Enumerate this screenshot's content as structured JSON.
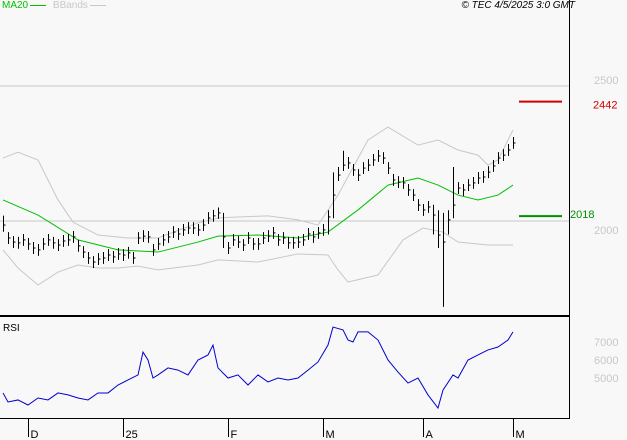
{
  "header": {
    "legend": [
      {
        "label": "MA20",
        "color": "#00c000"
      },
      {
        "label": "BBands",
        "color": "#c8c8c8"
      }
    ],
    "copyright": "© TEC 4/5/2025 3:0 GMT"
  },
  "chart_data": [
    {
      "type": "ohlc",
      "ylim": [
        1650,
        2680
      ],
      "y_ticks": [
        {
          "value": 2500,
          "label": "2500"
        },
        {
          "value": 2000,
          "label": "2000"
        }
      ],
      "x_ticks": [
        {
          "bar": 5,
          "label": "D"
        },
        {
          "bar": 24,
          "label": "25"
        },
        {
          "bar": 45,
          "label": "F"
        },
        {
          "bar": 64,
          "label": "M"
        },
        {
          "bar": 84,
          "label": "A"
        },
        {
          "bar": 102,
          "label": "M"
        }
      ],
      "grid": "horizontal at y ticks",
      "close": [
        1985,
        1937,
        1922,
        1919,
        1930,
        1915,
        1900,
        1893,
        1915,
        1930,
        1919,
        1911,
        1926,
        1930,
        1941,
        1908,
        1885,
        1863,
        1848,
        1859,
        1863,
        1874,
        1867,
        1878,
        1874,
        1882,
        1863,
        1937,
        1944,
        1941,
        1893,
        1915,
        1930,
        1941,
        1959,
        1952,
        1967,
        1974,
        1974,
        1967,
        1985,
        2011,
        2019,
        2030,
        1941,
        1900,
        1930,
        1922,
        1911,
        1937,
        1915,
        1915,
        1937,
        1944,
        1956,
        1930,
        1937,
        1919,
        1919,
        1922,
        1930,
        1952,
        1941,
        1956,
        1967,
        2015,
        2096,
        2170,
        2207,
        2215,
        2189,
        2170,
        2196,
        2207,
        2226,
        2241,
        2233,
        2196,
        2152,
        2144,
        2141,
        2115,
        2096,
        2059,
        2041,
        2052,
        2022,
        1948,
        1922,
        2004,
        2059,
        2122,
        2115,
        2133,
        2141,
        2159,
        2163,
        2181,
        2204,
        2233,
        2244,
        2263,
        2289
      ],
      "high": [
        2020,
        1959,
        1944,
        1941,
        1952,
        1937,
        1922,
        1915,
        1937,
        1952,
        1941,
        1933,
        1948,
        1952,
        1963,
        1930,
        1907,
        1885,
        1870,
        1881,
        1885,
        1896,
        1889,
        1900,
        1896,
        1904,
        1885,
        1959,
        1966,
        1963,
        1915,
        1937,
        1952,
        1963,
        1981,
        1974,
        1989,
        1996,
        1996,
        1989,
        2007,
        2033,
        2041,
        2050,
        2030,
        1922,
        1952,
        1944,
        1933,
        1959,
        1937,
        1937,
        1959,
        1966,
        1978,
        1952,
        1959,
        1941,
        1941,
        1944,
        1952,
        1974,
        1963,
        1978,
        1989,
        2040,
        2180,
        2200,
        2260,
        2237,
        2211,
        2192,
        2218,
        2229,
        2248,
        2263,
        2255,
        2218,
        2174,
        2166,
        2163,
        2137,
        2118,
        2081,
        2063,
        2074,
        2060,
        2040,
        2030,
        2040,
        2200,
        2144,
        2137,
        2155,
        2163,
        2181,
        2185,
        2203,
        2226,
        2255,
        2266,
        2285,
        2311
      ],
      "low": [
        1960,
        1915,
        1900,
        1897,
        1908,
        1893,
        1878,
        1871,
        1893,
        1908,
        1897,
        1889,
        1904,
        1908,
        1919,
        1886,
        1863,
        1841,
        1826,
        1837,
        1841,
        1852,
        1845,
        1856,
        1852,
        1860,
        1841,
        1915,
        1922,
        1919,
        1871,
        1893,
        1908,
        1919,
        1937,
        1930,
        1945,
        1952,
        1952,
        1945,
        1963,
        1989,
        1997,
        2008,
        1900,
        1878,
        1908,
        1900,
        1889,
        1915,
        1893,
        1893,
        1915,
        1922,
        1934,
        1908,
        1915,
        1897,
        1897,
        1900,
        1908,
        1930,
        1919,
        1934,
        1945,
        1950,
        2010,
        2148,
        2185,
        2193,
        2167,
        2148,
        2174,
        2185,
        2204,
        2219,
        2211,
        2174,
        2130,
        2122,
        2119,
        2093,
        2074,
        2037,
        2019,
        2030,
        1950,
        1900,
        1682,
        1950,
        2010,
        2100,
        2093,
        2111,
        2119,
        2137,
        2141,
        2159,
        2182,
        2211,
        2222,
        2241,
        2267
      ],
      "ma20": [
        [
          0,
          2078
        ],
        [
          7,
          2022
        ],
        [
          15,
          1930
        ],
        [
          23,
          1893
        ],
        [
          31,
          1885
        ],
        [
          39,
          1922
        ],
        [
          43,
          1944
        ],
        [
          51,
          1948
        ],
        [
          59,
          1937
        ],
        [
          65,
          1959
        ],
        [
          71,
          2041
        ],
        [
          77,
          2133
        ],
        [
          83,
          2159
        ],
        [
          87,
          2133
        ],
        [
          91,
          2096
        ],
        [
          95,
          2078
        ],
        [
          99,
          2096
        ],
        [
          102,
          2133
        ]
      ],
      "bband_upper": [
        [
          0,
          2233
        ],
        [
          3,
          2255
        ],
        [
          7,
          2226
        ],
        [
          11,
          2078
        ],
        [
          14,
          1996
        ],
        [
          19,
          1948
        ],
        [
          25,
          1937
        ],
        [
          31,
          1937
        ],
        [
          39,
          1993
        ],
        [
          43,
          2011
        ],
        [
          47,
          2015
        ],
        [
          53,
          2019
        ],
        [
          59,
          2004
        ],
        [
          63,
          1985
        ],
        [
          67,
          2096
        ],
        [
          73,
          2300
        ],
        [
          77,
          2348
        ],
        [
          83,
          2281
        ],
        [
          87,
          2300
        ],
        [
          91,
          2263
        ],
        [
          95,
          2244
        ],
        [
          97,
          2207
        ],
        [
          99,
          2226
        ],
        [
          102,
          2337
        ]
      ],
      "bband_lower": [
        [
          0,
          1893
        ],
        [
          3,
          1826
        ],
        [
          7,
          1763
        ],
        [
          11,
          1811
        ],
        [
          15,
          1837
        ],
        [
          19,
          1826
        ],
        [
          23,
          1826
        ],
        [
          27,
          1833
        ],
        [
          31,
          1819
        ],
        [
          39,
          1837
        ],
        [
          43,
          1856
        ],
        [
          51,
          1848
        ],
        [
          59,
          1878
        ],
        [
          65,
          1874
        ],
        [
          67,
          1819
        ],
        [
          69,
          1774
        ],
        [
          75,
          1800
        ],
        [
          80,
          1930
        ],
        [
          84,
          1974
        ],
        [
          88,
          1959
        ],
        [
          91,
          1922
        ],
        [
          97,
          1911
        ],
        [
          102,
          1911
        ]
      ],
      "levels": [
        {
          "value": 2442,
          "label": "2442",
          "color": "#d00000"
        },
        {
          "value": 2018,
          "label": "2018",
          "color": "#009000"
        }
      ]
    },
    {
      "type": "line",
      "title": "RSI",
      "y_ticks": [
        {
          "value": 70,
          "label": "7000"
        },
        {
          "value": 60,
          "label": "6000"
        },
        {
          "value": 50,
          "label": "5000"
        }
      ],
      "color": "#0000d0",
      "rsi": [
        [
          0,
          41.7
        ],
        [
          1,
          36.7
        ],
        [
          3,
          37.8
        ],
        [
          5,
          35
        ],
        [
          7,
          38.9
        ],
        [
          9,
          37.8
        ],
        [
          11,
          41.7
        ],
        [
          13,
          40.6
        ],
        [
          15,
          38.9
        ],
        [
          17,
          37.8
        ],
        [
          19,
          41.7
        ],
        [
          21,
          41.7
        ],
        [
          23,
          46.1
        ],
        [
          25,
          48.9
        ],
        [
          27,
          51.7
        ],
        [
          28,
          64.4
        ],
        [
          29,
          60
        ],
        [
          30,
          50
        ],
        [
          31,
          51.7
        ],
        [
          33,
          55.6
        ],
        [
          35,
          54.4
        ],
        [
          37,
          51.7
        ],
        [
          39,
          60
        ],
        [
          41,
          62.8
        ],
        [
          42,
          68.3
        ],
        [
          43,
          55.6
        ],
        [
          45,
          50
        ],
        [
          47,
          51.7
        ],
        [
          49,
          46.1
        ],
        [
          51,
          51.7
        ],
        [
          53,
          47.8
        ],
        [
          55,
          50
        ],
        [
          57,
          48.9
        ],
        [
          59,
          50
        ],
        [
          61,
          54.4
        ],
        [
          63,
          58.9
        ],
        [
          65,
          68.3
        ],
        [
          66,
          78.3
        ],
        [
          68,
          76.7
        ],
        [
          69,
          71.1
        ],
        [
          70,
          70
        ],
        [
          71,
          75.6
        ],
        [
          73,
          75.6
        ],
        [
          75,
          71.1
        ],
        [
          77,
          60
        ],
        [
          79,
          53.3
        ],
        [
          81,
          47.2
        ],
        [
          83,
          50
        ],
        [
          85,
          40.6
        ],
        [
          87,
          33.3
        ],
        [
          88,
          43.3
        ],
        [
          90,
          51.7
        ],
        [
          91,
          50
        ],
        [
          93,
          60
        ],
        [
          95,
          62.8
        ],
        [
          97,
          65.6
        ],
        [
          99,
          67.2
        ],
        [
          101,
          71.1
        ],
        [
          102,
          75.6
        ]
      ]
    }
  ]
}
